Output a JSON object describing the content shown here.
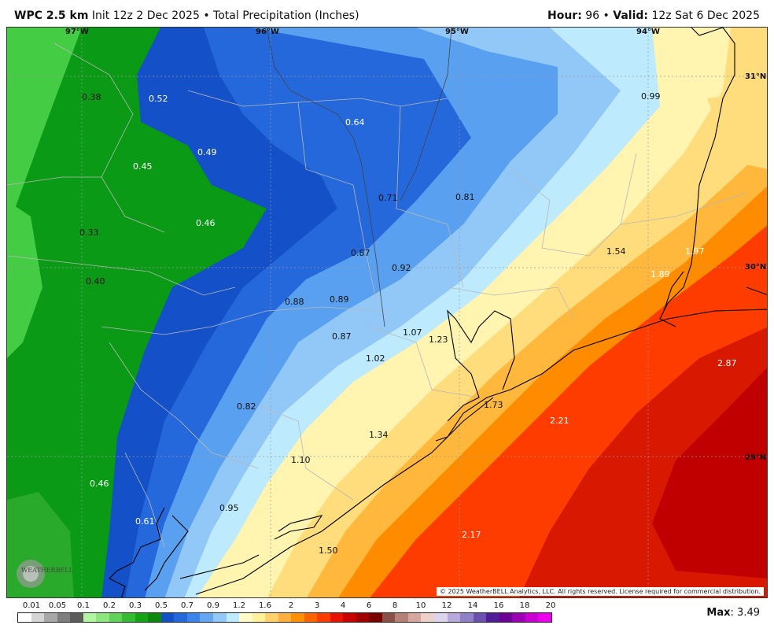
{
  "header": {
    "model": "WPC 2.5 km",
    "init": "Init 12z 2 Dec 2025",
    "separator": "•",
    "product": "Total Precipitation (Inches)",
    "hour_label": "Hour:",
    "hour_value": "96",
    "valid_label": "Valid:",
    "valid_value": "12z Sat 6 Dec 2025"
  },
  "map": {
    "lon_labels": [
      "97°W",
      "96°W",
      "95°W",
      "94°W"
    ],
    "lat_labels": [
      "31°N",
      "30°N",
      "29°N"
    ],
    "values": [
      {
        "v": "0.38",
        "dark": true
      },
      {
        "v": "0.52",
        "dark": false
      },
      {
        "v": "0.64",
        "dark": false
      },
      {
        "v": "0.99",
        "dark": true
      },
      {
        "v": "0.45",
        "dark": false
      },
      {
        "v": "0.49",
        "dark": false
      },
      {
        "v": "0.71",
        "dark": true
      },
      {
        "v": "0.81",
        "dark": true
      },
      {
        "v": "0.33",
        "dark": true
      },
      {
        "v": "0.46",
        "dark": false
      },
      {
        "v": "1.54",
        "dark": true
      },
      {
        "v": "1.97",
        "dark": false
      },
      {
        "v": "0.87",
        "dark": true
      },
      {
        "v": "0.92",
        "dark": true
      },
      {
        "v": "1.89",
        "dark": false
      },
      {
        "v": "0.40",
        "dark": true
      },
      {
        "v": "0.88",
        "dark": true
      },
      {
        "v": "0.89",
        "dark": true
      },
      {
        "v": "1.07",
        "dark": true
      },
      {
        "v": "1.23",
        "dark": true
      },
      {
        "v": "0.87",
        "dark": true
      },
      {
        "v": "1.02",
        "dark": true
      },
      {
        "v": "2.87",
        "dark": false
      },
      {
        "v": "0.82",
        "dark": true
      },
      {
        "v": "1.73",
        "dark": true
      },
      {
        "v": "2.21",
        "dark": false
      },
      {
        "v": "1.34",
        "dark": true
      },
      {
        "v": "1.10",
        "dark": true
      },
      {
        "v": "0.46",
        "dark": false
      },
      {
        "v": "0.95",
        "dark": true
      },
      {
        "v": "0.61",
        "dark": false
      },
      {
        "v": "2.17",
        "dark": false
      },
      {
        "v": "1.50",
        "dark": true
      }
    ],
    "copyright": "© 2025 WeatherBELL Analytics, LLC. All rights reserved. License required for commercial distribution.",
    "logo_text": "WEATHERBELL"
  },
  "legend": {
    "labels": [
      "0.01",
      "0.05",
      "0.1",
      "0.2",
      "0.3",
      "0.5",
      "0.7",
      "0.9",
      "1.2",
      "1.6",
      "2",
      "3",
      "4",
      "6",
      "8",
      "10",
      "12",
      "14",
      "16",
      "18",
      "20"
    ],
    "colors": [
      "#ffffff",
      "#d4d4d4",
      "#a8a8a8",
      "#7e7e7e",
      "#5c5c5c",
      "#b4f5a4",
      "#8ce67c",
      "#5fd25a",
      "#34bc34",
      "#16a416",
      "#0d8a0d",
      "#1450c8",
      "#2468dc",
      "#3c84ea",
      "#64a6f2",
      "#92c8f8",
      "#bdeafc",
      "#fffac8",
      "#fff09a",
      "#ffd06c",
      "#ffb03c",
      "#ff9000",
      "#ff6400",
      "#ff3c00",
      "#e81400",
      "#c80000",
      "#a00000",
      "#7a0000",
      "#8c5048",
      "#b48078",
      "#d4a8a0",
      "#ecd0cc",
      "#dcd4ec",
      "#b8a8dc",
      "#9080c8",
      "#6c50b0",
      "#501c98",
      "#6e0096",
      "#9c00b4",
      "#c800d4",
      "#ec00ec"
    ]
  },
  "max": {
    "label": "Max",
    "value": "3.49"
  }
}
